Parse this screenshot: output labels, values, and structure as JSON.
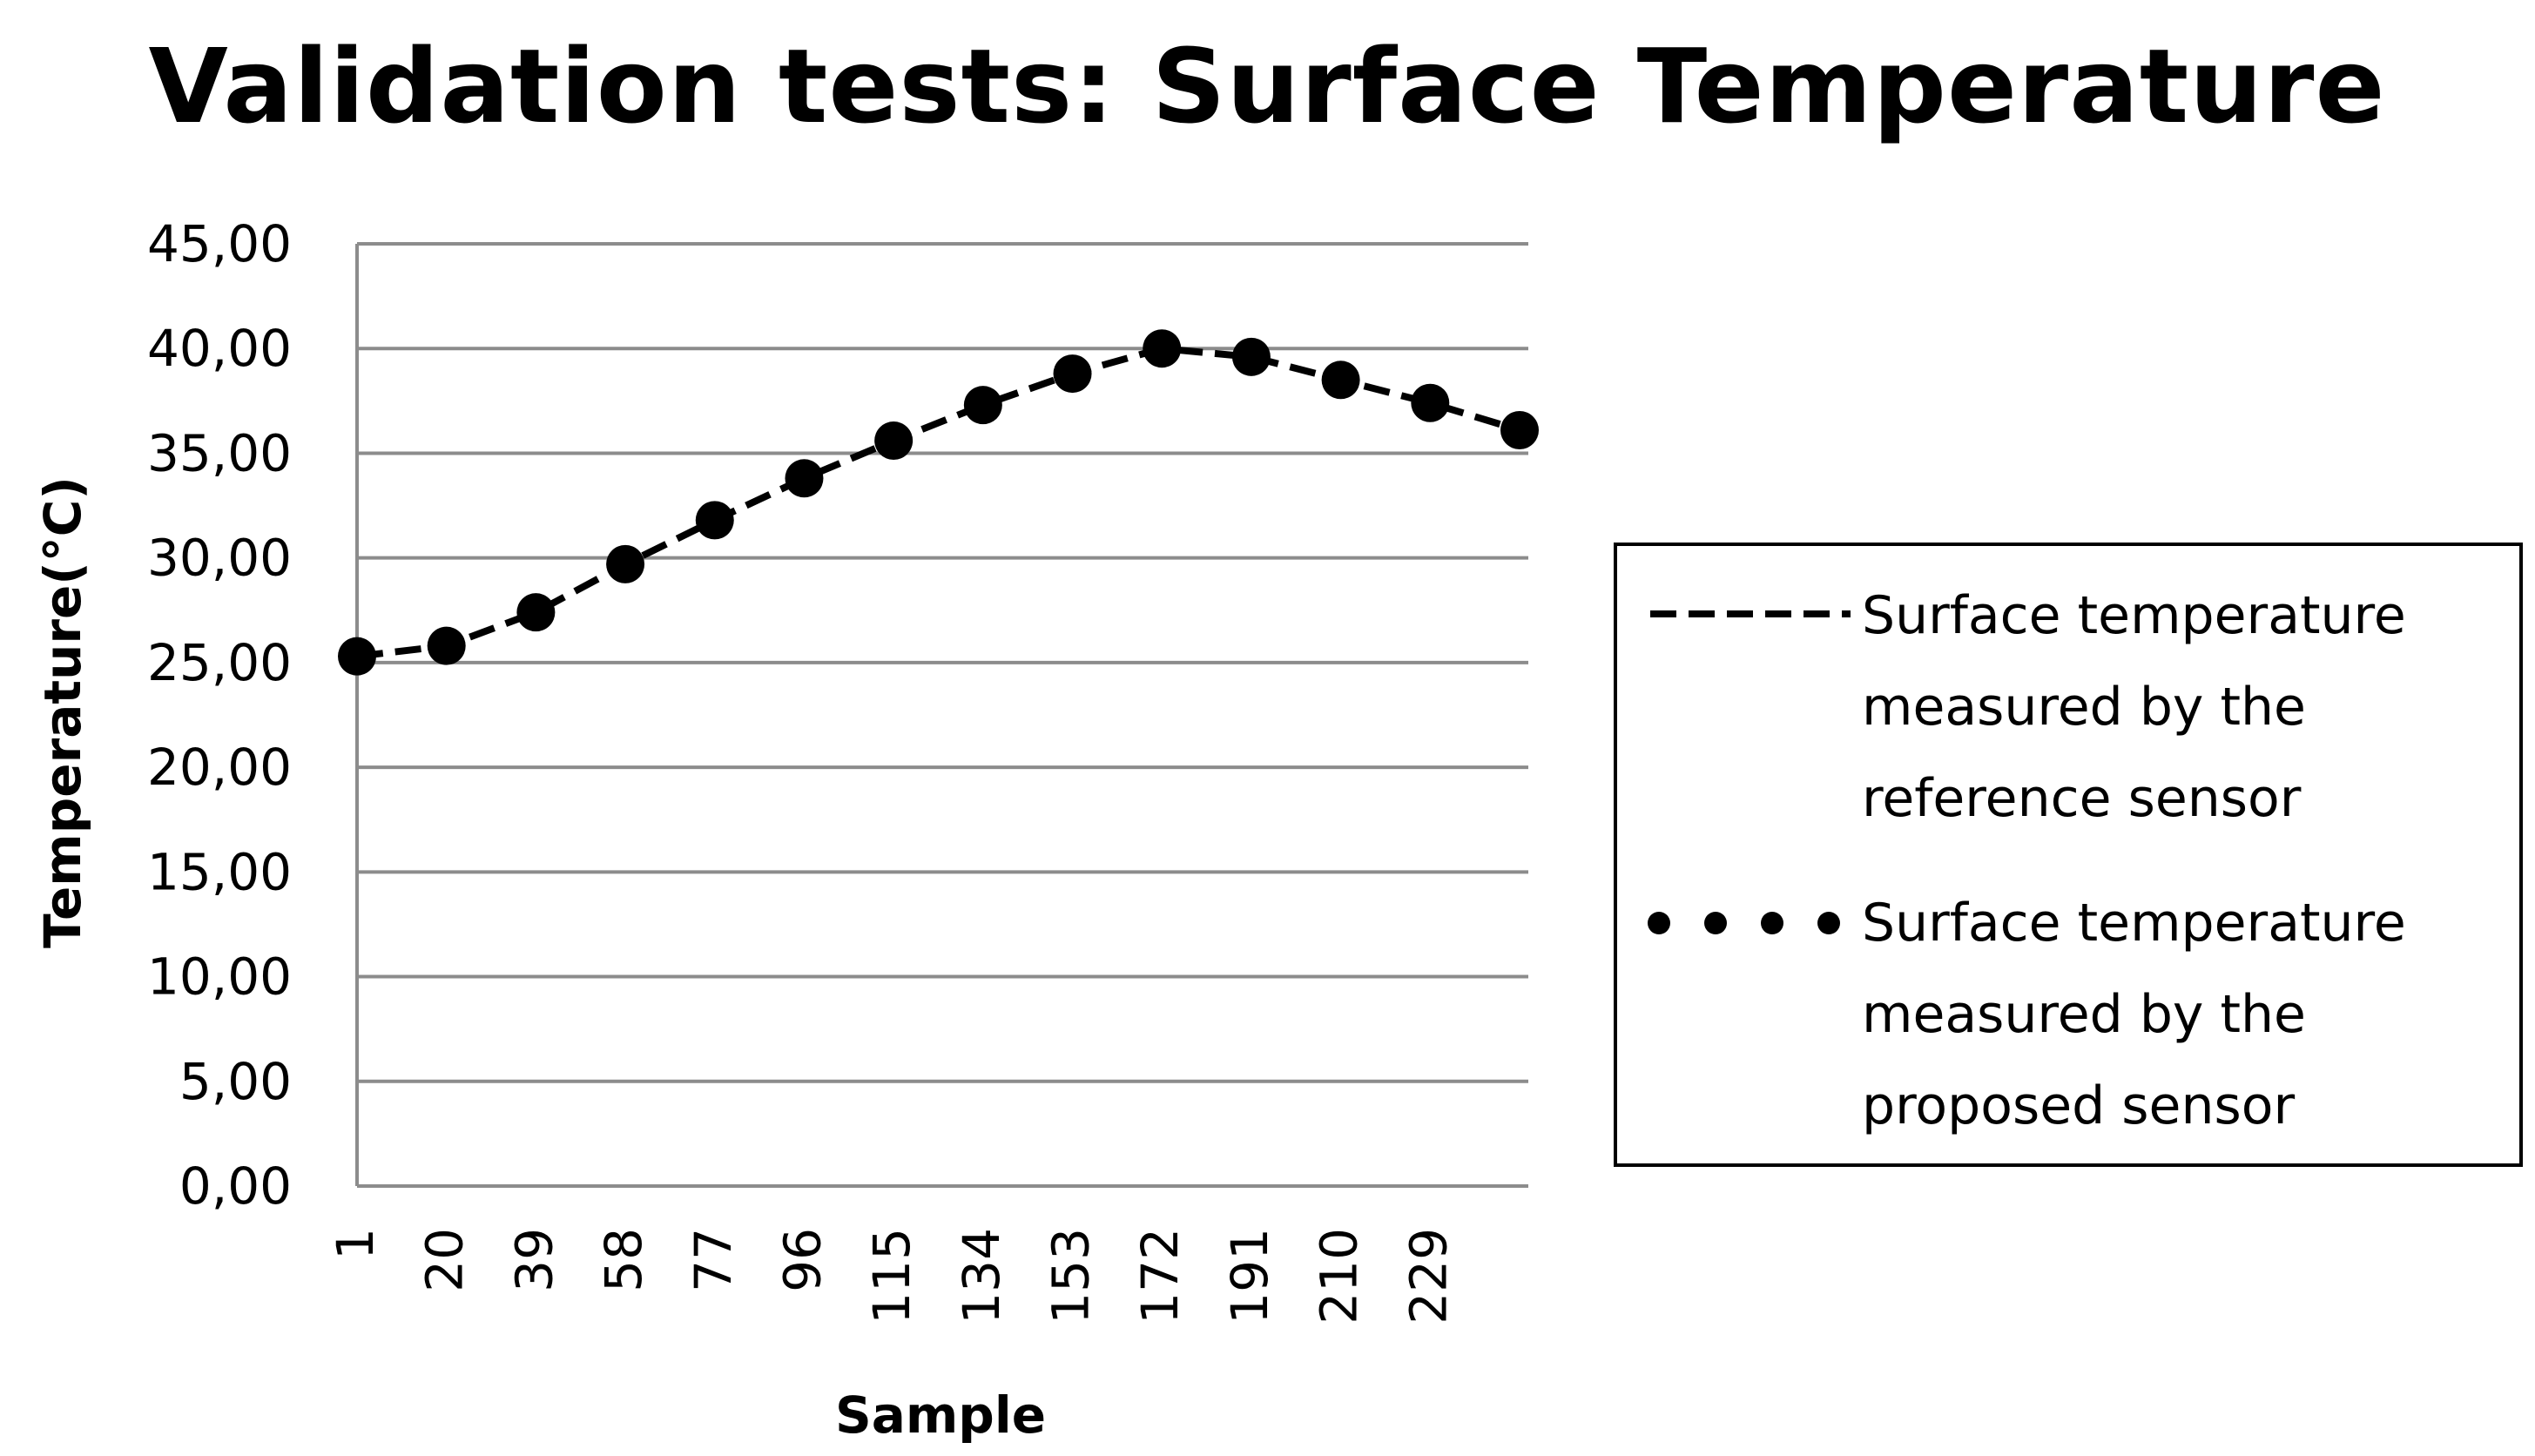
{
  "chart_data": {
    "type": "line",
    "title": "Validation tests: Surface Temperature",
    "xlabel": "Sample",
    "ylabel": "Temperature(°C)",
    "ylim": [
      0,
      45
    ],
    "y_ticks": [
      "0,00",
      "5,00",
      "10,00",
      "15,00",
      "20,00",
      "25,00",
      "30,00",
      "35,00",
      "40,00",
      "45,00"
    ],
    "y_tick_values": [
      0,
      5,
      10,
      15,
      20,
      25,
      30,
      35,
      40,
      45
    ],
    "x_ticks": [
      "1",
      "20",
      "39",
      "58",
      "77",
      "96",
      "115",
      "134",
      "153",
      "172",
      "191",
      "210",
      "229"
    ],
    "x_range": [
      1,
      248
    ],
    "grid": true,
    "legend_position": "right",
    "series": [
      {
        "name": "Surface temperature measured by the reference sensor",
        "legend_lines": [
          "Surface temperature",
          "measured by the",
          "reference sensor"
        ],
        "style": "dashed",
        "color": "#000000",
        "x": [
          1,
          20,
          39,
          58,
          77,
          96,
          115,
          134,
          153,
          172,
          191,
          210,
          229,
          248
        ],
        "values": [
          25.3,
          25.8,
          27.4,
          29.7,
          31.8,
          33.8,
          35.6,
          37.3,
          38.8,
          40.0,
          39.6,
          38.5,
          37.4,
          36.1
        ]
      },
      {
        "name": "Surface temperature measured by the proposed sensor",
        "legend_lines": [
          "Surface temperature",
          "measured by the",
          "proposed sensor"
        ],
        "style": "dotted",
        "color": "#000000",
        "x": [
          1,
          20,
          39,
          58,
          77,
          96,
          115,
          134,
          153,
          172,
          191,
          210,
          229,
          248
        ],
        "values": [
          25.3,
          25.8,
          27.4,
          29.7,
          31.8,
          33.8,
          35.6,
          37.3,
          38.8,
          40.0,
          39.6,
          38.5,
          37.4,
          36.1
        ]
      }
    ]
  }
}
